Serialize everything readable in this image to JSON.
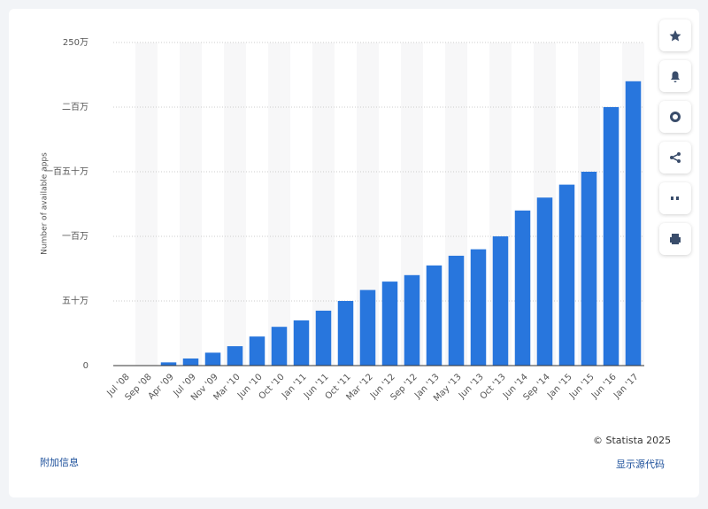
{
  "chart_data": {
    "type": "bar",
    "y_label": "Number of available apps",
    "categories": [
      "Jul '08",
      "Sep '08",
      "Apr '09",
      "Jul '09",
      "Nov '09",
      "Mar '10",
      "Jun '10",
      "Oct '10",
      "Jan '11",
      "Jun '11",
      "Oct '11",
      "Mar '12",
      "Jun '12",
      "Sep '12",
      "Jan '13",
      "May '13",
      "Jun '13",
      "Oct '13",
      "Jun '14",
      "Sep '14",
      "Jan '15",
      "Jun '15",
      "Jun '16",
      "Jan '17"
    ],
    "values": [
      800,
      3000,
      25000,
      55000,
      100000,
      150000,
      225000,
      300000,
      350000,
      425000,
      500000,
      585000,
      650000,
      700000,
      775000,
      850000,
      900000,
      1000000,
      1200000,
      1300000,
      1400000,
      1500000,
      2000000,
      2200000
    ],
    "color": "#2876dd",
    "ylim": [
      0,
      2500000
    ],
    "yticks": [
      0,
      {
        "value": 500000,
        "label": "五十万"
      },
      {
        "value": 1000000,
        "label": "一百万"
      },
      {
        "value": 1500000,
        "label": "一百五十万"
      },
      {
        "value": 2000000,
        "label": "二百万"
      },
      {
        "value": 2500000,
        "label": "250万"
      }
    ],
    "grid": true
  },
  "footer": {
    "copyright": "© Statista 2025",
    "additional_info": "附加信息",
    "show_source": "显示源代码"
  }
}
